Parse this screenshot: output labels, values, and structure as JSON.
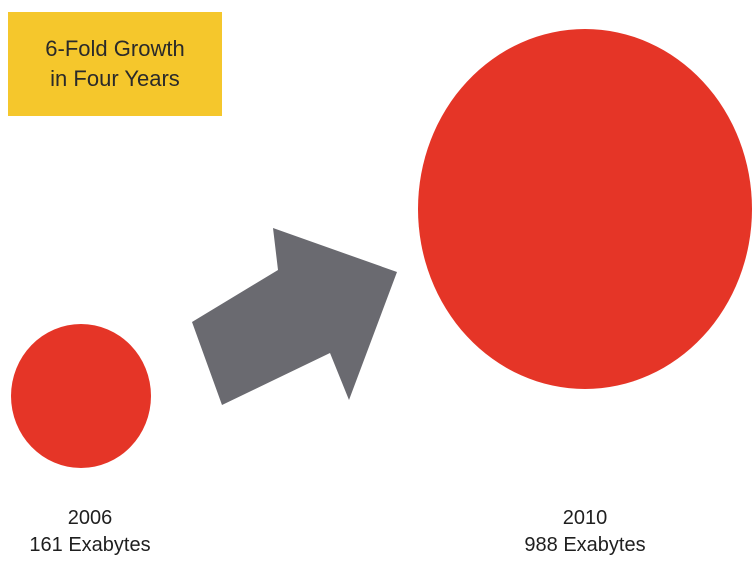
{
  "chart_data": {
    "type": "bubble",
    "title": "6-Fold Growth\nin Four Years",
    "categories": [
      "2006",
      "2010"
    ],
    "values": [
      161,
      988
    ],
    "value_labels": [
      "161 Exabytes",
      "988 Exabytes"
    ],
    "unit": "Exabytes",
    "series": [
      {
        "values": [
          161,
          988
        ]
      }
    ],
    "colors": {
      "bubble": "#e53527",
      "arrow": "#6a6a70",
      "callout": "#f5c72c",
      "text": "#1f1f1f"
    }
  }
}
